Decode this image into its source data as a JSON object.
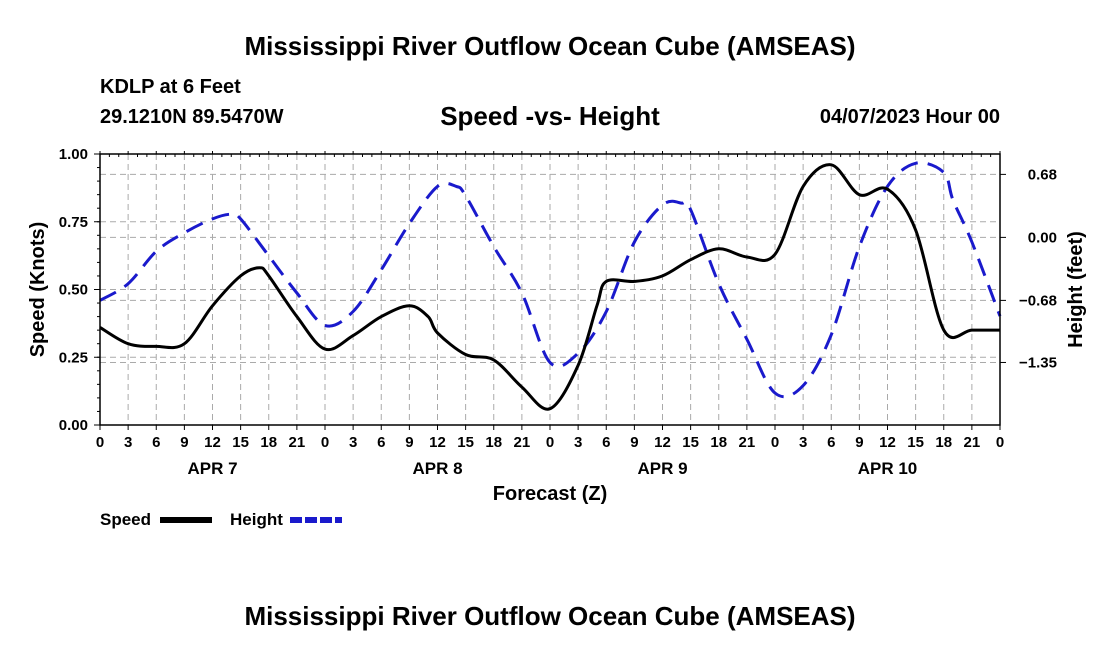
{
  "header": {
    "title": "Mississippi River Outflow Ocean Cube (AMSEAS)",
    "station": "KDLP at 6 Feet",
    "coords": "29.1210N  89.5470W",
    "subtitle": "Speed -vs- Height",
    "datetime": "04/07/2023 Hour 00"
  },
  "footer": {
    "title": "Mississippi River Outflow Ocean Cube (AMSEAS)"
  },
  "colors": {
    "speed": "#000000",
    "height": "#1a1acc",
    "grid": "#aaaaaa"
  },
  "chart_data": {
    "type": "line",
    "xlabel": "Forecast (Z)",
    "ylabel": "Speed (Knots)",
    "y2label": "Height (feet)",
    "xlim": [
      0,
      96
    ],
    "ylim": [
      0,
      1.0
    ],
    "y2lim": [
      -2.025,
      0.9
    ],
    "x_ticks": [
      0,
      3,
      6,
      9,
      12,
      15,
      18,
      21,
      24,
      27,
      30,
      33,
      36,
      39,
      42,
      45,
      48,
      51,
      54,
      57,
      60,
      63,
      66,
      69,
      72,
      75,
      78,
      81,
      84,
      87,
      90,
      93,
      96
    ],
    "x_tick_labels": [
      "0",
      "3",
      "6",
      "9",
      "12",
      "15",
      "18",
      "21",
      "0",
      "3",
      "6",
      "9",
      "12",
      "15",
      "18",
      "21",
      "0",
      "3",
      "6",
      "9",
      "12",
      "15",
      "18",
      "21",
      "0",
      "3",
      "6",
      "9",
      "12",
      "15",
      "18",
      "21",
      "0"
    ],
    "day_labels": [
      {
        "label": "APR 7",
        "hour": 12
      },
      {
        "label": "APR 8",
        "hour": 36
      },
      {
        "label": "APR 9",
        "hour": 60
      },
      {
        "label": "APR 10",
        "hour": 84
      }
    ],
    "y_ticks": [
      0.0,
      0.25,
      0.5,
      0.75,
      1.0
    ],
    "y_tick_labels": [
      "0.00",
      "0.25",
      "0.50",
      "0.75",
      "1.00"
    ],
    "y2_ticks": [
      -1.35,
      -0.68,
      0.0,
      0.68
    ],
    "y2_tick_labels": [
      "−1.35",
      "−0.68",
      "0.00",
      "0.68"
    ],
    "grid": true,
    "series": [
      {
        "name": "Speed",
        "axis": "left",
        "style": "solid",
        "x": [
          0,
          3,
          6,
          9,
          12,
          15,
          17,
          18,
          21,
          24,
          27,
          30,
          33,
          35,
          36,
          39,
          42,
          45,
          48,
          51,
          53,
          54,
          57,
          60,
          63,
          66,
          69,
          72,
          75,
          78,
          81,
          84,
          87,
          90,
          93,
          96
        ],
        "y": [
          0.36,
          0.3,
          0.29,
          0.3,
          0.44,
          0.55,
          0.58,
          0.55,
          0.4,
          0.28,
          0.33,
          0.4,
          0.44,
          0.4,
          0.34,
          0.26,
          0.24,
          0.14,
          0.06,
          0.22,
          0.44,
          0.53,
          0.53,
          0.55,
          0.61,
          0.65,
          0.62,
          0.63,
          0.88,
          0.96,
          0.85,
          0.87,
          0.72,
          0.35,
          0.35,
          0.35
        ]
      },
      {
        "name": "Height",
        "axis": "right",
        "style": "dashed",
        "x": [
          0,
          3,
          6,
          9,
          12,
          14,
          15,
          18,
          21,
          24,
          27,
          30,
          33,
          36,
          38,
          39,
          42,
          45,
          48,
          51,
          54,
          57,
          60,
          62,
          63,
          66,
          69,
          72,
          75,
          78,
          81,
          84,
          87,
          90,
          91,
          93,
          96
        ],
        "y": [
          -0.68,
          -0.5,
          -0.15,
          0.05,
          0.2,
          0.25,
          0.2,
          -0.2,
          -0.6,
          -0.95,
          -0.8,
          -0.35,
          0.15,
          0.55,
          0.55,
          0.45,
          -0.1,
          -0.6,
          -1.35,
          -1.25,
          -0.8,
          -0.05,
          0.35,
          0.37,
          0.3,
          -0.5,
          -1.1,
          -1.68,
          -1.6,
          -1.05,
          -0.1,
          0.55,
          0.8,
          0.7,
          0.4,
          -0.05,
          -0.85
        ]
      }
    ],
    "legend": [
      {
        "label": "Speed",
        "style": "solid"
      },
      {
        "label": "Height",
        "style": "dashed"
      }
    ]
  }
}
